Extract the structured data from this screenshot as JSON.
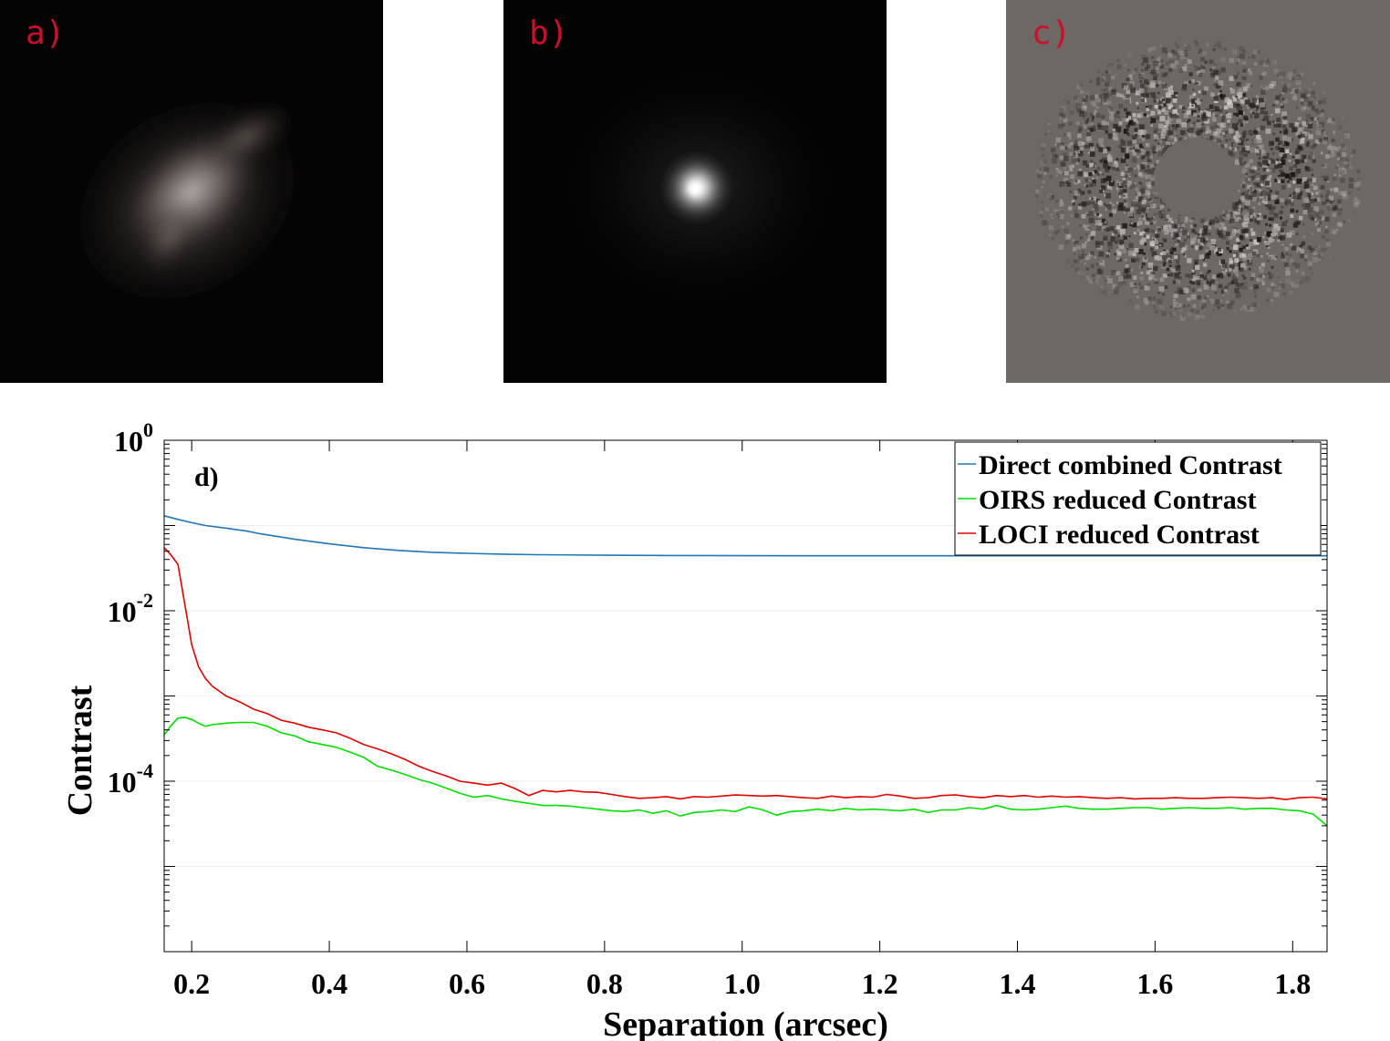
{
  "panels": [
    {
      "label": "a)"
    },
    {
      "label": "b)"
    },
    {
      "label": "c)"
    }
  ],
  "colors": {
    "direct": "#1f77b4",
    "oirs": "#00e000",
    "loci": "#e00000",
    "panel_label": "#c8102e"
  },
  "chart_data": {
    "type": "line",
    "panel_label": "d)",
    "xlabel": "Separation (arcsec)",
    "ylabel": "Contrast",
    "xlim": [
      0.16,
      1.85
    ],
    "ylim": [
      1e-06,
      1
    ],
    "yscale": "log",
    "xticks": [
      0.2,
      0.4,
      0.6,
      0.8,
      1.0,
      1.2,
      1.4,
      1.6,
      1.8
    ],
    "xtick_labels": [
      "0.2",
      "0.4",
      "0.6",
      "0.8",
      "1.0",
      "1.2",
      "1.4",
      "1.6",
      "1.8"
    ],
    "yticks": [
      {
        "value": 1,
        "base": "10",
        "exp": "0"
      },
      {
        "value": 0.01,
        "base": "10",
        "exp": "-2"
      },
      {
        "value": 0.0001,
        "base": "10",
        "exp": "-4"
      }
    ],
    "legend_position": "top-right",
    "series": [
      {
        "name": "Direct combined Contrast",
        "color": "#1f77b4",
        "x": [
          0.16,
          0.18,
          0.2,
          0.22,
          0.25,
          0.28,
          0.3,
          0.35,
          0.4,
          0.45,
          0.5,
          0.55,
          0.6,
          0.65,
          0.7,
          0.8,
          0.9,
          1.0,
          1.1,
          1.2,
          1.3,
          1.4,
          1.5,
          1.6,
          1.7,
          1.8,
          1.85
        ],
        "y": [
          0.13,
          0.118,
          0.108,
          0.1,
          0.093,
          0.086,
          0.08,
          0.069,
          0.061,
          0.055,
          0.051,
          0.0485,
          0.0472,
          0.0462,
          0.0455,
          0.0448,
          0.0445,
          0.0443,
          0.0442,
          0.0442,
          0.0442,
          0.0441,
          0.0441,
          0.0441,
          0.0441,
          0.0441,
          0.0442
        ]
      },
      {
        "name": "OIRS reduced Contrast",
        "color": "#00e000",
        "x": [
          0.16,
          0.17,
          0.18,
          0.19,
          0.2,
          0.21,
          0.22,
          0.23,
          0.25,
          0.27,
          0.29,
          0.31,
          0.33,
          0.35,
          0.37,
          0.39,
          0.41,
          0.43,
          0.45,
          0.47,
          0.49,
          0.51,
          0.53,
          0.55,
          0.57,
          0.59,
          0.61,
          0.63,
          0.65,
          0.67,
          0.69,
          0.71,
          0.73,
          0.75,
          0.77,
          0.79,
          0.81,
          0.83,
          0.85,
          0.87,
          0.89,
          0.91,
          0.93,
          0.95,
          0.97,
          0.99,
          1.01,
          1.03,
          1.05,
          1.07,
          1.09,
          1.11,
          1.13,
          1.15,
          1.17,
          1.19,
          1.21,
          1.23,
          1.25,
          1.27,
          1.29,
          1.31,
          1.33,
          1.35,
          1.37,
          1.39,
          1.41,
          1.43,
          1.45,
          1.47,
          1.49,
          1.51,
          1.53,
          1.55,
          1.57,
          1.59,
          1.61,
          1.63,
          1.65,
          1.67,
          1.69,
          1.71,
          1.73,
          1.75,
          1.77,
          1.79,
          1.81,
          1.83,
          1.85
        ],
        "y": [
          0.00035,
          0.00045,
          0.00055,
          0.00056,
          0.00053,
          0.00048,
          0.00044,
          0.00046,
          0.00048,
          0.00049,
          0.00049,
          0.00044,
          0.00037,
          0.00034,
          0.00029,
          0.00027,
          0.00025,
          0.00022,
          0.00019,
          0.00015,
          0.000135,
          0.00012,
          0.000105,
          9.5e-05,
          8.3e-05,
          7.2e-05,
          6.5e-05,
          6.8e-05,
          6.2e-05,
          5.8e-05,
          5.5e-05,
          5.2e-05,
          5.2e-05,
          5.1e-05,
          4.9e-05,
          4.7e-05,
          4.5e-05,
          4.4e-05,
          4.6e-05,
          4.2e-05,
          4.5e-05,
          3.9e-05,
          4.3e-05,
          4.4e-05,
          4.6e-05,
          4.4e-05,
          5e-05,
          4.6e-05,
          4e-05,
          4.4e-05,
          4.5e-05,
          4.7e-05,
          4.5e-05,
          4.8e-05,
          4.6e-05,
          4.7e-05,
          4.6e-05,
          4.5e-05,
          4.7e-05,
          4.3e-05,
          4.6e-05,
          4.6e-05,
          4.9e-05,
          4.7e-05,
          5.2e-05,
          4.7e-05,
          4.6e-05,
          4.7e-05,
          4.9e-05,
          5.1e-05,
          4.8e-05,
          4.7e-05,
          4.7e-05,
          4.8e-05,
          4.9e-05,
          4.9e-05,
          4.7e-05,
          4.8e-05,
          4.9e-05,
          4.8e-05,
          4.8e-05,
          4.9e-05,
          4.7e-05,
          4.8e-05,
          4.8e-05,
          4.6e-05,
          4.5e-05,
          4.1e-05,
          3e-05
        ]
      },
      {
        "name": "LOCI reduced Contrast",
        "color": "#e00000",
        "x": [
          0.16,
          0.17,
          0.18,
          0.19,
          0.2,
          0.21,
          0.22,
          0.23,
          0.25,
          0.27,
          0.29,
          0.31,
          0.33,
          0.35,
          0.37,
          0.39,
          0.41,
          0.43,
          0.45,
          0.47,
          0.49,
          0.51,
          0.53,
          0.55,
          0.57,
          0.59,
          0.61,
          0.63,
          0.65,
          0.67,
          0.69,
          0.71,
          0.73,
          0.75,
          0.77,
          0.79,
          0.81,
          0.83,
          0.85,
          0.87,
          0.89,
          0.91,
          0.93,
          0.95,
          0.97,
          0.99,
          1.01,
          1.03,
          1.05,
          1.07,
          1.09,
          1.11,
          1.13,
          1.15,
          1.17,
          1.19,
          1.21,
          1.23,
          1.25,
          1.27,
          1.29,
          1.31,
          1.33,
          1.35,
          1.37,
          1.39,
          1.41,
          1.43,
          1.45,
          1.47,
          1.49,
          1.51,
          1.53,
          1.55,
          1.57,
          1.59,
          1.61,
          1.63,
          1.65,
          1.67,
          1.69,
          1.71,
          1.73,
          1.75,
          1.77,
          1.79,
          1.81,
          1.83,
          1.85
        ],
        "y": [
          0.055,
          0.045,
          0.035,
          0.012,
          0.004,
          0.0022,
          0.0016,
          0.0013,
          0.001,
          0.00085,
          0.0007,
          0.00062,
          0.00052,
          0.00048,
          0.00043,
          0.0004,
          0.00037,
          0.00032,
          0.00027,
          0.00024,
          0.00021,
          0.00018,
          0.00015,
          0.00013,
          0.000115,
          0.0001,
          9.5e-05,
          9e-05,
          9.5e-05,
          8.2e-05,
          6.8e-05,
          7.8e-05,
          7.5e-05,
          7.8e-05,
          7.5e-05,
          7.4e-05,
          7e-05,
          6.6e-05,
          6.3e-05,
          6.4e-05,
          6.6e-05,
          6.2e-05,
          6.6e-05,
          6.5e-05,
          6.7e-05,
          6.9e-05,
          6.8e-05,
          6.7e-05,
          6.8e-05,
          6.6e-05,
          6.4e-05,
          6.3e-05,
          6.7e-05,
          6.4e-05,
          6.6e-05,
          6.5e-05,
          7e-05,
          6.7e-05,
          6.3e-05,
          6.4e-05,
          6.8e-05,
          6.9e-05,
          6.6e-05,
          6.4e-05,
          6.8e-05,
          6.6e-05,
          6.8e-05,
          6.5e-05,
          6.7e-05,
          6.5e-05,
          6.6e-05,
          6.4e-05,
          6.3e-05,
          6.4e-05,
          6.2e-05,
          6.3e-05,
          6.3e-05,
          6.4e-05,
          6.3e-05,
          6.3e-05,
          6.4e-05,
          6.5e-05,
          6.4e-05,
          6.3e-05,
          6.4e-05,
          6.1e-05,
          6.4e-05,
          6.5e-05,
          6.2e-05
        ]
      }
    ]
  }
}
